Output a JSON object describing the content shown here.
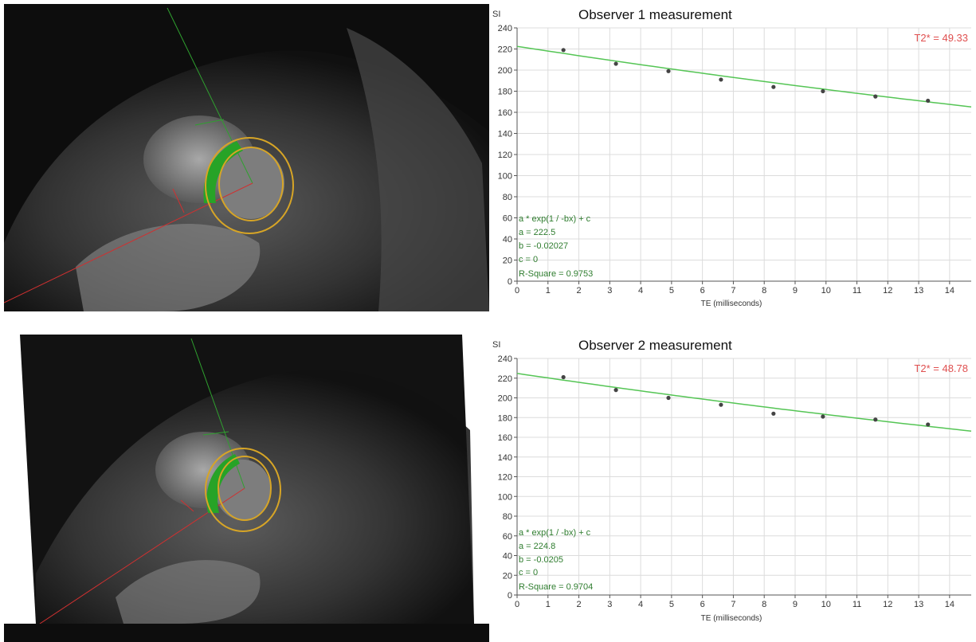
{
  "colors": {
    "fit_line": "#55c555",
    "points": "#444444",
    "t2_text": "#e05050",
    "fit_text": "#2f7d2f",
    "grid": "#dcdcdc",
    "roi_contour": "#d7a526",
    "septal_segment": "#27a327",
    "rv_line": "#d03030",
    "lv_line": "#2fa02f"
  },
  "chart_data": [
    {
      "type": "scatter",
      "title": "Observer 1 measurement",
      "ylabel": "SI",
      "xlabel": "TE (milliseconds)",
      "xlim": [
        0,
        14.7
      ],
      "ylim": [
        0,
        240
      ],
      "x_ticks": [
        "0",
        "1",
        "2",
        "3",
        "4",
        "5",
        "6",
        "7",
        "8",
        "9",
        "10",
        "11",
        "12",
        "13",
        "14"
      ],
      "y_ticks": [
        "0",
        "20",
        "40",
        "60",
        "80",
        "100",
        "120",
        "140",
        "160",
        "180",
        "200",
        "220",
        "240"
      ],
      "grid": true,
      "t2_label": "T2* = 49.33",
      "fit": {
        "a": 222.5,
        "b": -0.02027,
        "c": 0
      },
      "fit_lines": [
        "a * exp(1 / -bx) + c",
        "a = 222.5",
        "b = -0.02027",
        "c = 0",
        "R-Square = 0.9753"
      ],
      "series": [
        {
          "x": [
            1.5,
            3.2,
            4.9,
            6.6,
            8.3,
            9.9,
            11.6,
            13.3
          ],
          "y": [
            219,
            206,
            199,
            191,
            184,
            180,
            175,
            171
          ]
        }
      ]
    },
    {
      "type": "scatter",
      "title": "Observer 2 measurement",
      "ylabel": "SI",
      "xlabel": "TE (milliseconds)",
      "xlim": [
        0,
        14.7
      ],
      "ylim": [
        0,
        240
      ],
      "x_ticks": [
        "0",
        "1",
        "2",
        "3",
        "4",
        "5",
        "6",
        "7",
        "8",
        "9",
        "10",
        "11",
        "12",
        "13",
        "14"
      ],
      "y_ticks": [
        "0",
        "20",
        "40",
        "60",
        "80",
        "100",
        "120",
        "140",
        "160",
        "180",
        "200",
        "220",
        "240"
      ],
      "grid": true,
      "t2_label": "T2* = 48.78",
      "fit": {
        "a": 224.8,
        "b": -0.0205,
        "c": 0
      },
      "fit_lines": [
        "a * exp(1 / -bx) + c",
        "a = 224.8",
        "b = -0.0205",
        "c = 0",
        "R-Square = 0.9704"
      ],
      "series": [
        {
          "x": [
            1.5,
            3.2,
            4.9,
            6.6,
            8.3,
            9.9,
            11.6,
            13.3
          ],
          "y": [
            221,
            208,
            200,
            193,
            184,
            181,
            178,
            173
          ]
        }
      ]
    }
  ]
}
